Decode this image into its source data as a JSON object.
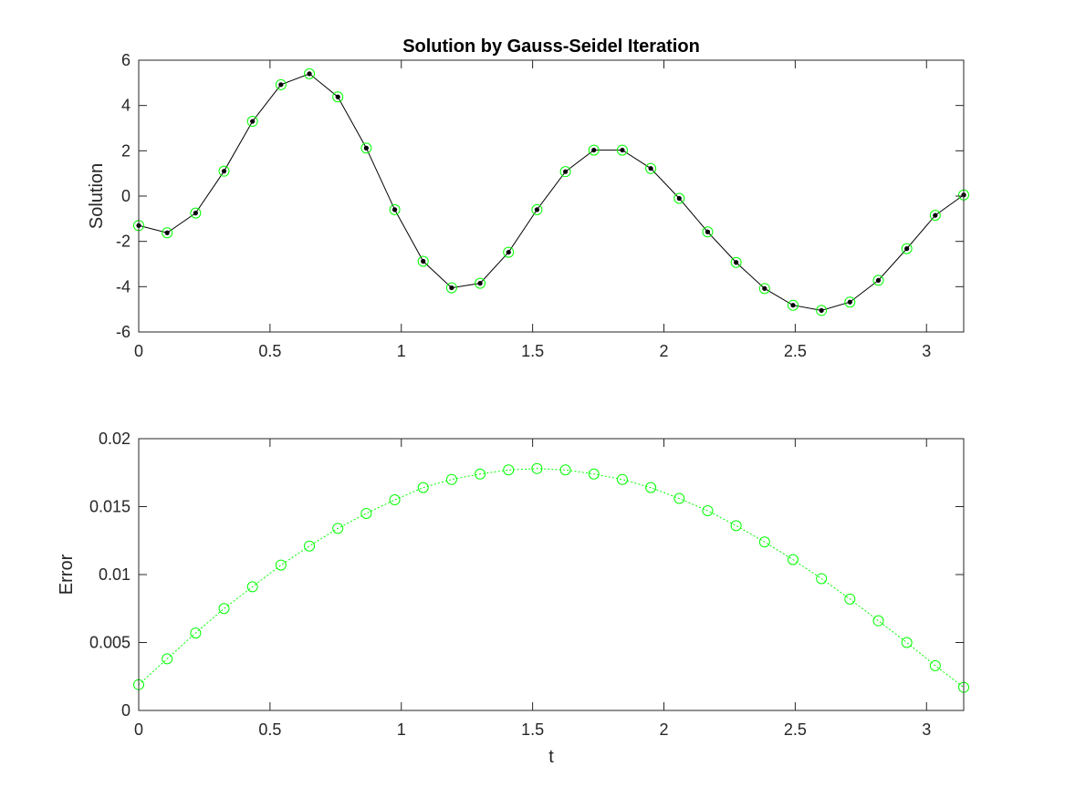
{
  "chart_data": [
    {
      "type": "line",
      "title": "Solution by Gauss-Seidel Iteration",
      "xlabel": "",
      "ylabel": "Solution",
      "xlim": [
        0,
        3.14159
      ],
      "ylim": [
        -6,
        6
      ],
      "xticks": [
        0,
        0.5,
        1,
        1.5,
        2,
        2.5,
        3
      ],
      "xtick_labels": [
        "0",
        "0.5",
        "1",
        "1.5",
        "2",
        "2.5",
        "3"
      ],
      "yticks": [
        -6,
        -4,
        -2,
        0,
        2,
        4,
        6
      ],
      "ytick_labels": [
        "-6",
        "-4",
        "-2",
        "0",
        "2",
        "4",
        "6"
      ],
      "grid": false,
      "x": [
        0,
        0.1083,
        0.2167,
        0.325,
        0.4333,
        0.5416,
        0.65,
        0.7583,
        0.8666,
        0.975,
        1.0833,
        1.1916,
        1.3,
        1.4083,
        1.5166,
        1.625,
        1.7333,
        1.8416,
        1.95,
        2.0583,
        2.1666,
        2.275,
        2.3833,
        2.4916,
        2.6,
        2.7083,
        2.8166,
        2.925,
        3.0333,
        3.1416
      ],
      "series": [
        {
          "marker": "dot",
          "linestyle": "solid",
          "color": "#000000",
          "values": [
            -1.3,
            -1.62,
            -0.75,
            1.1,
            3.3,
            4.92,
            5.4,
            4.38,
            2.12,
            -0.6,
            -2.88,
            -4.05,
            -3.85,
            -2.48,
            -0.6,
            1.08,
            2.03,
            2.03,
            1.22,
            -0.1,
            -1.58,
            -2.93,
            -4.08,
            -4.82,
            -5.05,
            -4.68,
            -3.72,
            -2.32,
            -0.85,
            0.05
          ]
        },
        {
          "marker": "circle",
          "linestyle": "none",
          "color": "#00ff00",
          "values": [
            -1.3,
            -1.62,
            -0.75,
            1.1,
            3.3,
            4.92,
            5.4,
            4.38,
            2.12,
            -0.6,
            -2.88,
            -4.05,
            -3.85,
            -2.48,
            -0.6,
            1.08,
            2.03,
            2.03,
            1.22,
            -0.1,
            -1.58,
            -2.93,
            -4.08,
            -4.82,
            -5.05,
            -4.68,
            -3.72,
            -2.32,
            -0.85,
            0.05
          ]
        }
      ]
    },
    {
      "type": "line",
      "title": "",
      "xlabel": "t",
      "ylabel": "Error",
      "xlim": [
        0,
        3.14159
      ],
      "ylim": [
        0,
        0.02
      ],
      "xticks": [
        0,
        0.5,
        1,
        1.5,
        2,
        2.5,
        3
      ],
      "xtick_labels": [
        "0",
        "0.5",
        "1",
        "1.5",
        "2",
        "2.5",
        "3"
      ],
      "yticks": [
        0,
        0.005,
        0.01,
        0.015,
        0.02
      ],
      "ytick_labels": [
        "0",
        "0.005",
        "0.01",
        "0.015",
        "0.02"
      ],
      "grid": false,
      "x": [
        0,
        0.1083,
        0.2167,
        0.325,
        0.4333,
        0.5416,
        0.65,
        0.7583,
        0.8666,
        0.975,
        1.0833,
        1.1916,
        1.3,
        1.4083,
        1.5166,
        1.625,
        1.7333,
        1.8416,
        1.95,
        2.0583,
        2.1666,
        2.275,
        2.3833,
        2.4916,
        2.6,
        2.7083,
        2.8166,
        2.925,
        3.0333,
        3.1416
      ],
      "series": [
        {
          "marker": "circle",
          "linestyle": "dotted",
          "color": "#00ff00",
          "values": [
            0.0019,
            0.0038,
            0.0057,
            0.0075,
            0.0091,
            0.0107,
            0.0121,
            0.0134,
            0.0145,
            0.0155,
            0.0164,
            0.017,
            0.0174,
            0.0177,
            0.0178,
            0.0177,
            0.0174,
            0.017,
            0.0164,
            0.0156,
            0.0147,
            0.0136,
            0.0124,
            0.0111,
            0.0097,
            0.0082,
            0.0066,
            0.005,
            0.0033,
            0.0017
          ]
        }
      ]
    }
  ]
}
